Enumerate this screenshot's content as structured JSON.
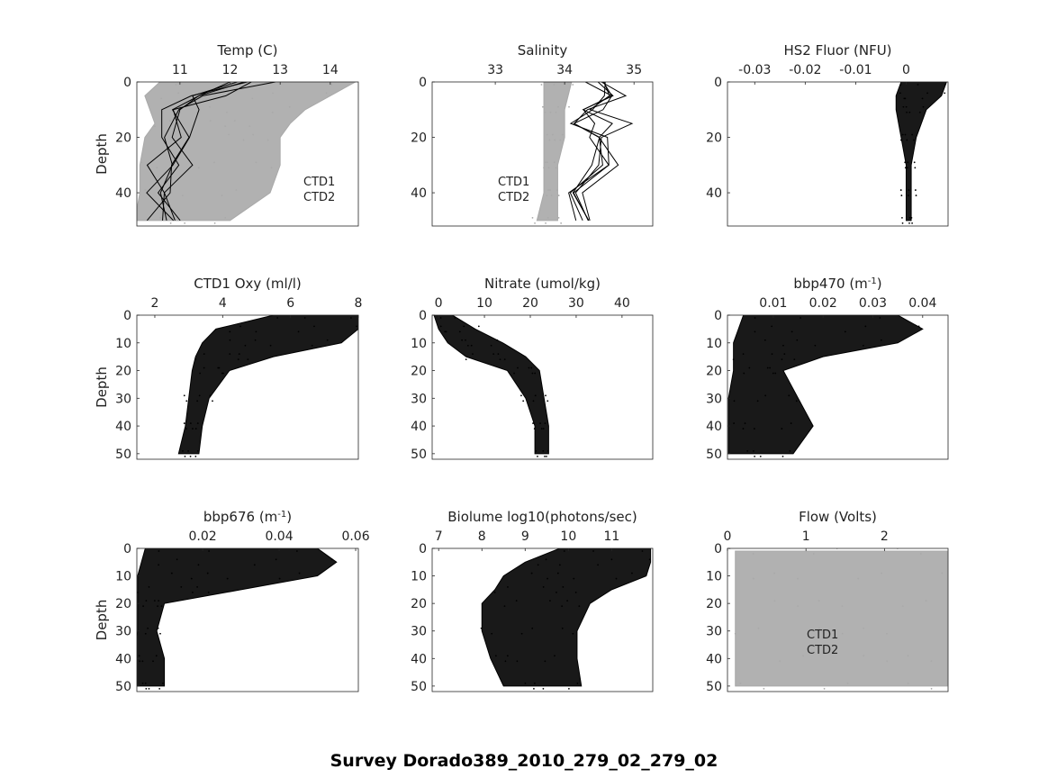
{
  "figure_title": "Survey Dorado389_2010_279_02_279_02",
  "chart_data": [
    {
      "type": "scatter",
      "title": "Temp (C)",
      "ylabel": "Depth",
      "xticks": [
        11,
        12,
        13,
        14
      ],
      "yticks": [
        0,
        20,
        40
      ],
      "xlim": [
        10.14,
        14.56
      ],
      "ylim": [
        0,
        52
      ],
      "legend": [
        "CTD1",
        "CTD2"
      ],
      "series": [
        {
          "name": "CTD2",
          "color": "#a9a9a9",
          "depth": [
            0,
            5,
            10,
            15,
            20,
            30,
            40,
            50
          ],
          "min": [
            10.6,
            10.3,
            10.4,
            10.5,
            10.3,
            10.2,
            10.2,
            10.1
          ],
          "max": [
            14.5,
            14.0,
            13.5,
            13.2,
            13.0,
            13.0,
            12.8,
            12.0
          ]
        },
        {
          "name": "CTD1",
          "color": "#000000",
          "depth": [
            0,
            5,
            10,
            20,
            30,
            40,
            50
          ],
          "min": [
            12.0,
            11.0,
            10.6,
            10.4,
            10.3,
            10.2,
            10.1
          ],
          "max": [
            14.0,
            13.6,
            13.2,
            12.4,
            12.0,
            11.4,
            10.8
          ],
          "line": true
        }
      ]
    },
    {
      "type": "scatter",
      "title": "Salinity",
      "ylabel": "",
      "xticks": [
        33,
        34,
        35
      ],
      "yticks": [
        0,
        20,
        40
      ],
      "xlim": [
        32.09,
        35.27
      ],
      "ylim": [
        0,
        52
      ],
      "legend": [
        "CTD1",
        "CTD2"
      ],
      "series": [
        {
          "name": "CTD2",
          "color": "#a9a9a9",
          "depth": [
            0,
            10,
            20,
            30,
            40,
            50
          ],
          "min": [
            33.7,
            33.7,
            33.7,
            33.7,
            33.7,
            33.6
          ],
          "max": [
            34.1,
            34.0,
            34.0,
            33.9,
            33.9,
            33.9
          ]
        },
        {
          "name": "CTD1",
          "color": "#000000",
          "depth": [
            0,
            5,
            10,
            15,
            20,
            30,
            40,
            50
          ],
          "min": [
            33.9,
            33.9,
            33.9,
            34.0,
            33.9,
            33.9,
            33.9,
            34.0
          ],
          "max": [
            34.3,
            34.5,
            34.3,
            34.6,
            34.3,
            35.3,
            34.1,
            34.2
          ],
          "line": true
        }
      ]
    },
    {
      "type": "scatter",
      "title": "HS2 Fluor (NFU)",
      "ylabel": "",
      "xticks": [
        -0.03,
        -0.02,
        -0.01,
        0
      ],
      "yticks": [
        0,
        20,
        40
      ],
      "xlim": [
        -0.0354,
        0.0083
      ],
      "ylim": [
        0,
        52
      ],
      "series": [
        {
          "name": "HS2",
          "color": "#000000",
          "depth": [
            0,
            5,
            10,
            20,
            30,
            40,
            50
          ],
          "min": [
            -0.001,
            -0.002,
            -0.002,
            -0.001,
            0,
            0,
            0
          ],
          "max": [
            0.008,
            0.007,
            0.004,
            0.002,
            0.001,
            0.001,
            0.001
          ]
        }
      ]
    },
    {
      "type": "scatter",
      "title": "CTD1 Oxy (ml/l)",
      "ylabel": "Depth",
      "xticks": [
        2,
        4,
        6,
        8
      ],
      "yticks": [
        0,
        10,
        20,
        30,
        40,
        50
      ],
      "xlim": [
        1.47,
        8
      ],
      "ylim": [
        0,
        52
      ],
      "series": [
        {
          "name": "CTD1",
          "color": "#000000",
          "depth": [
            0,
            5,
            10,
            15,
            20,
            30,
            40,
            50
          ],
          "min": [
            5.5,
            3.8,
            3.4,
            3.2,
            3.1,
            3.0,
            2.9,
            2.7
          ],
          "max": [
            8,
            8,
            7.5,
            5.5,
            4.2,
            3.6,
            3.4,
            3.3
          ]
        }
      ]
    },
    {
      "type": "scatter",
      "title": "Nitrate (umol/kg)",
      "ylabel": "",
      "xticks": [
        0,
        10,
        20,
        30,
        40
      ],
      "yticks": [
        0,
        10,
        20,
        30,
        40,
        50
      ],
      "xlim": [
        -1.4,
        46.7
      ],
      "ylim": [
        0,
        52
      ],
      "series": [
        {
          "name": "Nitrate",
          "color": "#000000",
          "depth": [
            0,
            5,
            10,
            15,
            20,
            30,
            40,
            50
          ],
          "min": [
            -1,
            0,
            2,
            6,
            15,
            19,
            21,
            21
          ],
          "max": [
            3,
            8,
            14,
            19,
            22,
            23,
            24,
            24
          ]
        }
      ]
    },
    {
      "type": "scatter",
      "title": "bbp470 (m",
      "title_sup": "-1",
      "title_suffix": ")",
      "ylabel": "",
      "xticks": [
        0.01,
        0.02,
        0.03,
        0.04
      ],
      "yticks": [
        0,
        10,
        20,
        30,
        40,
        50
      ],
      "xlim": [
        0.0008,
        0.0451
      ],
      "ylim": [
        0,
        52
      ],
      "series": [
        {
          "name": "bbp470",
          "color": "#000000",
          "depth": [
            0,
            5,
            10,
            15,
            20,
            30,
            40,
            50
          ],
          "min": [
            0.004,
            0.003,
            0.002,
            0.002,
            0.002,
            0.001,
            0.001,
            0.001
          ],
          "max": [
            0.035,
            0.04,
            0.035,
            0.02,
            0.012,
            0.015,
            0.018,
            0.014
          ]
        }
      ]
    },
    {
      "type": "scatter",
      "title": "bbp676 (m",
      "title_sup": "-1",
      "title_suffix": ")",
      "ylabel": "Depth",
      "xticks": [
        0.02,
        0.04,
        0.06
      ],
      "yticks": [
        0,
        10,
        20,
        30,
        40,
        50
      ],
      "xlim": [
        0.0028,
        0.0607
      ],
      "ylim": [
        0,
        52
      ],
      "series": [
        {
          "name": "bbp676",
          "color": "#000000",
          "depth": [
            0,
            5,
            10,
            15,
            20,
            30,
            40,
            50
          ],
          "min": [
            0.005,
            0.004,
            0.003,
            0.003,
            0.003,
            0.003,
            0.002,
            0.002
          ],
          "max": [
            0.05,
            0.055,
            0.05,
            0.03,
            0.01,
            0.008,
            0.01,
            0.01
          ]
        }
      ]
    },
    {
      "type": "scatter",
      "title": "Biolume log10(photons/sec)",
      "ylabel": "",
      "xticks": [
        7,
        8,
        9,
        10,
        11
      ],
      "yticks": [
        0,
        10,
        20,
        30,
        40,
        50
      ],
      "xlim": [
        6.85,
        11.95
      ],
      "ylim": [
        0,
        52
      ],
      "series": [
        {
          "name": "Biolume",
          "color": "#000000",
          "depth": [
            0,
            5,
            10,
            15,
            20,
            30,
            40,
            50
          ],
          "min": [
            9.8,
            9.0,
            8.5,
            8.3,
            8.0,
            8.0,
            8.2,
            8.5
          ],
          "max": [
            11.9,
            11.9,
            11.8,
            11.0,
            10.5,
            10.2,
            10.2,
            10.3
          ]
        }
      ]
    },
    {
      "type": "scatter",
      "title": "Flow (Volts)",
      "ylabel": "",
      "xticks": [
        0,
        1,
        2
      ],
      "yticks": [
        0,
        10,
        20,
        30,
        40,
        50
      ],
      "xlim": [
        0,
        2.81
      ],
      "ylim": [
        0,
        52
      ],
      "legend": [
        "CTD1",
        "CTD2"
      ],
      "series": [
        {
          "name": "CTD2",
          "color": "#a9a9a9",
          "depth": [
            1,
            10,
            20,
            30,
            40,
            50
          ],
          "min": [
            0.1,
            0.1,
            0.1,
            0.1,
            0.1,
            0.1
          ],
          "max": [
            2.8,
            2.8,
            2.8,
            2.8,
            2.8,
            2.8
          ]
        }
      ]
    }
  ]
}
